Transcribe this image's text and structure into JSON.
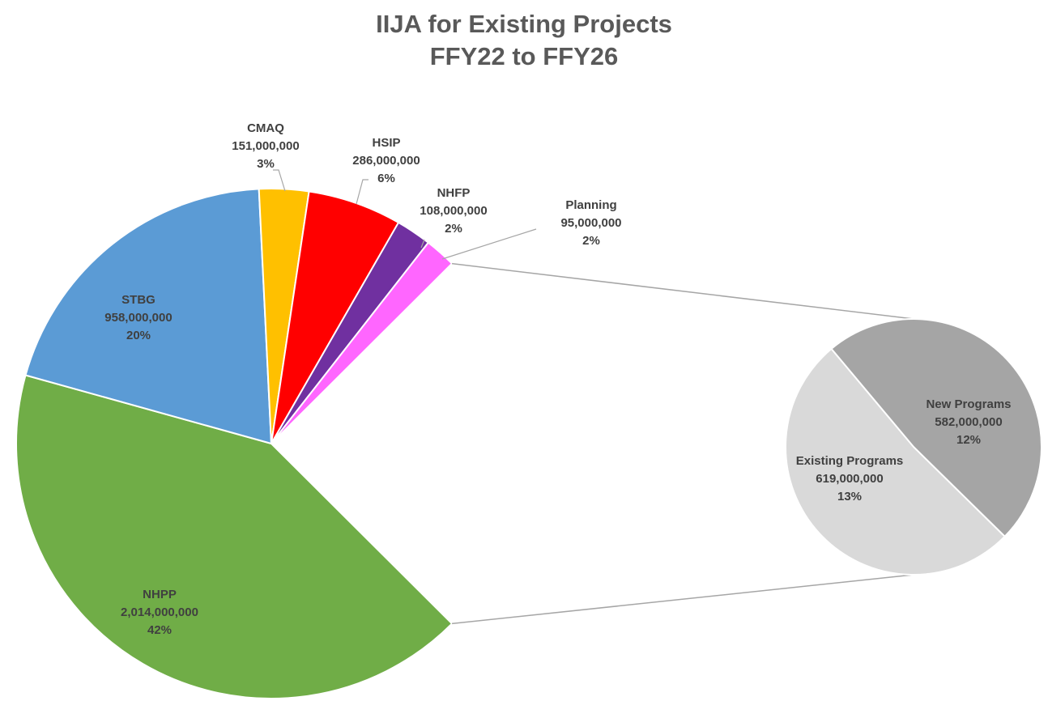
{
  "chart_data": {
    "type": "pie-of-pie",
    "title": "IIJA for Existing Projects",
    "subtitle": "FFY22 to FFY26",
    "categories": [
      "NHPP",
      "STBG",
      "CMAQ",
      "HSIP",
      "NHFP",
      "Planning",
      "Existing Programs",
      "New Programs"
    ],
    "values": [
      2014000000,
      958000000,
      151000000,
      286000000,
      108000000,
      95000000,
      619000000,
      582000000
    ],
    "value_labels": [
      "2,014,000,000",
      "958,000,000",
      "151,000,000",
      "286,000,000",
      "108,000,000",
      "95,000,000",
      "619,000,000",
      "582,000,000"
    ],
    "percents": [
      {
        "value": 42,
        "label": "42%"
      },
      {
        "value": 20,
        "label": "20%"
      },
      {
        "value": 3,
        "label": "3%"
      },
      {
        "value": 6,
        "label": "6%"
      },
      {
        "value": 2,
        "label": "2%"
      },
      {
        "value": 2,
        "label": "2%"
      },
      {
        "value": 13,
        "label": "13%"
      },
      {
        "value": 12,
        "label": "12%"
      }
    ],
    "colors": [
      "#70ad47",
      "#5b9bd5",
      "#ffc000",
      "#ff0000",
      "#7030a0",
      "#ff66ff",
      "#d9d9d9",
      "#a5a5a5"
    ],
    "second_pie_count": 2
  }
}
